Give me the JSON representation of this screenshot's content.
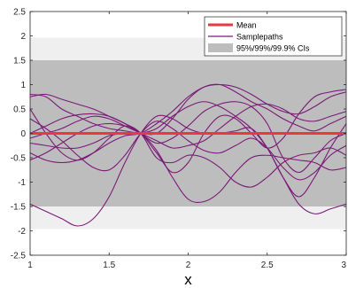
{
  "chart_data": {
    "type": "line",
    "title": "",
    "xlabel": "x",
    "ylabel": "",
    "xlim": [
      1,
      3
    ],
    "ylim": [
      -2.5,
      2.5
    ],
    "x_ticks": [
      1,
      1.5,
      2,
      2.5,
      3
    ],
    "x_tick_labels": [
      "1",
      "1.5",
      "2",
      "2.5",
      "3"
    ],
    "y_ticks": [
      -2.5,
      -2,
      -1.5,
      -1,
      -0.5,
      0,
      0.5,
      1,
      1.5,
      2,
      2.5
    ],
    "y_tick_labels": [
      "-2.5",
      "-2",
      "-1.5",
      "-1",
      "-0.5",
      "0",
      "0.5",
      "1",
      "1.5",
      "2",
      "2.5"
    ],
    "grid": false,
    "legend_position": "top-right",
    "confidence_bands": [
      {
        "level": "99.9%",
        "lower": -1.96,
        "upper": 1.96
      },
      {
        "level": "99%",
        "lower": -1.96,
        "upper": 1.96
      },
      {
        "level": "95%",
        "lower": -1.5,
        "upper": 1.5
      }
    ],
    "mean": {
      "name": "Mean",
      "x": [
        1,
        3
      ],
      "y": [
        0,
        0
      ]
    },
    "x": [
      1.0,
      1.1,
      1.2,
      1.3,
      1.4,
      1.5,
      1.6,
      1.7,
      1.8,
      1.9,
      2.0,
      2.1,
      2.2,
      2.3,
      2.4,
      2.5,
      2.6,
      2.7,
      2.8,
      2.9,
      3.0
    ],
    "series": [
      {
        "values": [
          0.8,
          0.75,
          0.5,
          0.35,
          0.2,
          0.1,
          0.05,
          0.0,
          0.0,
          0.3,
          0.7,
          0.95,
          1.0,
          0.85,
          0.65,
          0.5,
          0.3,
          0.15,
          0.05,
          0.2,
          0.35
        ]
      },
      {
        "values": [
          0.75,
          0.8,
          0.7,
          0.6,
          0.5,
          0.35,
          0.2,
          0.0,
          -0.5,
          -0.6,
          -0.45,
          -0.5,
          -0.7,
          -1.0,
          -1.1,
          -0.9,
          -0.6,
          -0.45,
          -0.4,
          -0.3,
          -0.45
        ]
      },
      {
        "values": [
          0.5,
          0.0,
          -0.4,
          -0.55,
          -0.4,
          -0.1,
          0.15,
          0.0,
          -0.4,
          -0.8,
          -0.6,
          0.0,
          0.35,
          0.3,
          0.0,
          -0.3,
          -0.1,
          0.4,
          0.75,
          0.85,
          0.9
        ]
      },
      {
        "values": [
          -0.55,
          -0.4,
          -0.2,
          0.0,
          0.15,
          0.2,
          0.15,
          0.0,
          -0.35,
          -0.9,
          -1.35,
          -1.4,
          -1.2,
          -0.8,
          -0.5,
          -0.45,
          -0.5,
          -0.55,
          -0.6,
          -0.75,
          -0.7
        ]
      },
      {
        "values": [
          0.0,
          0.15,
          0.3,
          0.38,
          0.4,
          0.35,
          0.2,
          0.0,
          -0.2,
          -0.1,
          0.15,
          0.45,
          0.6,
          0.65,
          0.55,
          0.2,
          -0.5,
          -0.8,
          -0.5,
          -0.15,
          0.0
        ]
      },
      {
        "values": [
          -0.2,
          -0.25,
          -0.3,
          -0.3,
          -0.2,
          -0.05,
          0.0,
          0.0,
          0.1,
          0.35,
          0.55,
          0.65,
          0.55,
          0.35,
          0.1,
          -0.3,
          -0.9,
          -1.3,
          -0.9,
          -0.3,
          0.2
        ]
      },
      {
        "values": [
          -0.4,
          -0.55,
          -0.6,
          -0.55,
          -0.4,
          -0.2,
          -0.05,
          0.0,
          0.2,
          0.45,
          0.75,
          0.95,
          1.0,
          0.95,
          0.8,
          0.6,
          0.45,
          0.4,
          0.55,
          0.75,
          0.85
        ]
      },
      {
        "values": [
          -1.45,
          -1.6,
          -1.75,
          -1.9,
          -1.75,
          -1.3,
          -0.6,
          0.0,
          0.35,
          0.3,
          0.1,
          0.0,
          0.0,
          0.05,
          0.1,
          -0.3,
          -0.9,
          -1.45,
          -1.65,
          -1.55,
          -1.45
        ]
      },
      {
        "values": [
          -0.1,
          0.0,
          0.1,
          0.25,
          0.35,
          0.3,
          0.15,
          0.0,
          -0.15,
          -0.3,
          -0.25,
          -0.15,
          0.1,
          0.35,
          0.55,
          0.6,
          0.5,
          0.3,
          0.25,
          0.35,
          0.45
        ]
      },
      {
        "values": [
          0.3,
          0.1,
          -0.15,
          -0.45,
          -0.7,
          -0.75,
          -0.45,
          0.0,
          0.25,
          0.1,
          -0.15,
          -0.35,
          -0.4,
          -0.25,
          -0.1,
          -0.3,
          -0.7,
          -0.95,
          -0.8,
          -0.45,
          -0.25
        ]
      }
    ],
    "legend": [
      {
        "label": "Mean",
        "color": "#e8393f"
      },
      {
        "label": "Samplepaths",
        "color": "#7a1a78"
      },
      {
        "label": "95%/99%/99.9% CIs",
        "color": "#bdbdbd"
      }
    ],
    "colors": {
      "band_outer": "#efefef",
      "band_inner": "#bdbdbd",
      "mean": "#e8393f",
      "sample": "#7a1a78",
      "axis": "#262626"
    }
  }
}
